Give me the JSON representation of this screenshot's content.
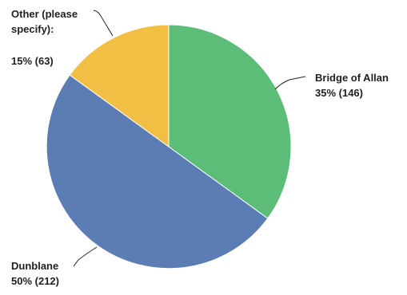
{
  "chart_data": {
    "type": "pie",
    "title": "",
    "start_angle_deg": 0,
    "direction": "clockwise",
    "slices": [
      {
        "label": "Bridge of Allan",
        "percent": 35,
        "count": 146,
        "value_text": "35% (146)",
        "color": "#5bbd78"
      },
      {
        "label": "Dunblane",
        "percent": 50,
        "count": 212,
        "value_text": "50% (212)",
        "color": "#5b7db3"
      },
      {
        "label": "Other (please specify):",
        "percent": 15,
        "count": 63,
        "value_text": "15% (63)",
        "color": "#f2bf45"
      }
    ]
  }
}
